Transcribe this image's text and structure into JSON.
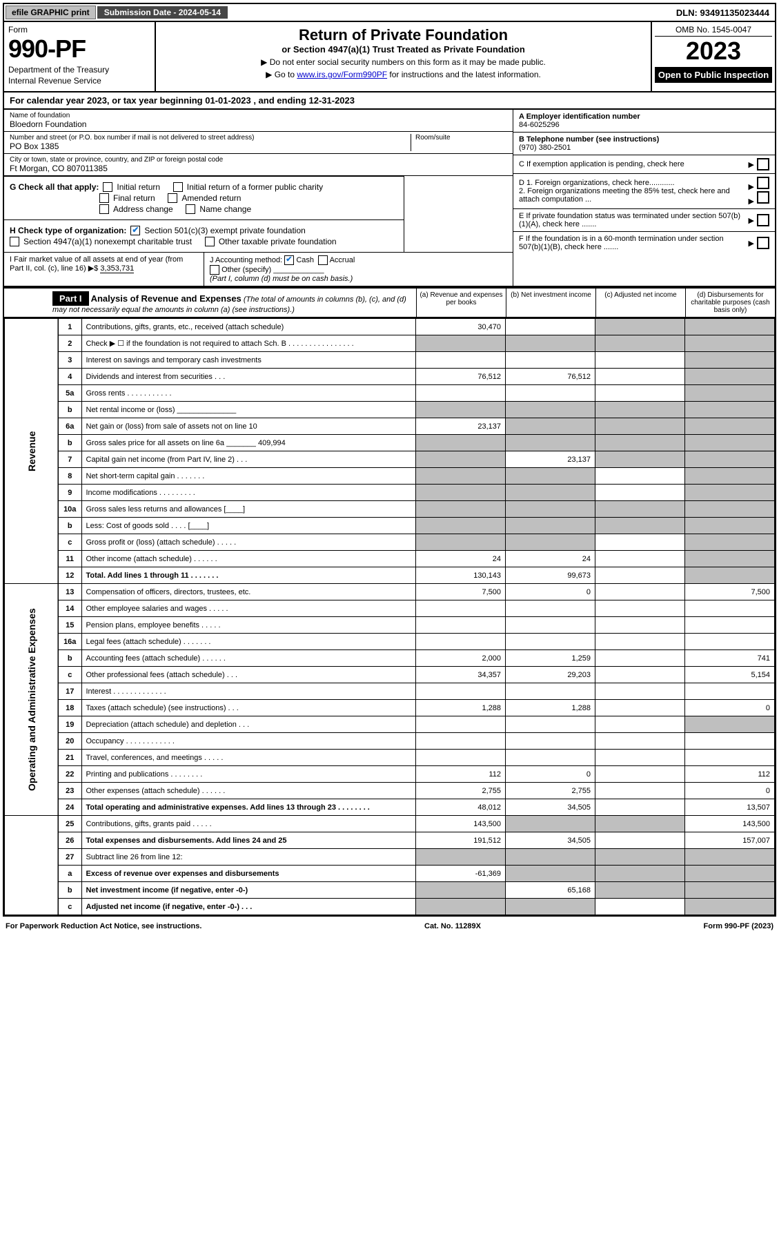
{
  "topbar": {
    "efile": "efile GRAPHIC print",
    "submission": "Submission Date - 2024-05-14",
    "dln": "DLN: 93491135023444"
  },
  "header": {
    "form_label": "Form",
    "form_no": "990-PF",
    "dept": "Department of the Treasury",
    "irs": "Internal Revenue Service",
    "title": "Return of Private Foundation",
    "subtitle": "or Section 4947(a)(1) Trust Treated as Private Foundation",
    "note1": "▶ Do not enter social security numbers on this form as it may be made public.",
    "note2_pre": "▶ Go to ",
    "note2_link": "www.irs.gov/Form990PF",
    "note2_post": " for instructions and the latest information.",
    "omb": "OMB No. 1545-0047",
    "year": "2023",
    "open": "Open to Public Inspection"
  },
  "cal": "For calendar year 2023, or tax year beginning 01-01-2023            , and ending 12-31-2023",
  "entity": {
    "name_lbl": "Name of foundation",
    "name": "Bloedorn Foundation",
    "addr_lbl": "Number and street (or P.O. box number if mail is not delivered to street address)",
    "addr": "PO Box 1385",
    "room_lbl": "Room/suite",
    "city_lbl": "City or town, state or province, country, and ZIP or foreign postal code",
    "city": "Ft Morgan, CO  807011385"
  },
  "right_info": {
    "a_lbl": "A Employer identification number",
    "a_val": "84-6025296",
    "b_lbl": "B Telephone number (see instructions)",
    "b_val": "(970) 380-2501",
    "c_lbl": "C If exemption application is pending, check here",
    "d1": "D 1. Foreign organizations, check here............",
    "d2": "2. Foreign organizations meeting the 85% test, check here and attach computation ...",
    "e": "E  If private foundation status was terminated under section 507(b)(1)(A), check here .......",
    "f": "F  If the foundation is in a 60-month termination under section 507(b)(1)(B), check here .......",
    "g_lbl": "G Check all that apply:",
    "g_opts": [
      "Initial return",
      "Initial return of a former public charity",
      "Final return",
      "Amended return",
      "Address change",
      "Name change"
    ],
    "h_lbl": "H Check type of organization:",
    "h_opts": [
      "Section 501(c)(3) exempt private foundation",
      "Section 4947(a)(1) nonexempt charitable trust",
      "Other taxable private foundation"
    ],
    "i_lbl": "I Fair market value of all assets at end of year (from Part II, col. (c), line 16) ▶$",
    "i_val": "3,353,731",
    "j_lbl": "J Accounting method:",
    "j_cash": "Cash",
    "j_accrual": "Accrual",
    "j_other": "Other (specify)",
    "j_note": "(Part I, column (d) must be on cash basis.)"
  },
  "part1": {
    "label": "Part I",
    "title": "Analysis of Revenue and Expenses",
    "title_note": "(The total of amounts in columns (b), (c), and (d) may not necessarily equal the amounts in column (a) (see instructions).)",
    "cols": [
      "(a) Revenue and expenses per books",
      "(b) Net investment income",
      "(c) Adjusted net income",
      "(d) Disbursements for charitable purposes (cash basis only)"
    ]
  },
  "sides": {
    "rev": "Revenue",
    "exp": "Operating and Administrative Expenses"
  },
  "lines": [
    {
      "n": "1",
      "d": "Contributions, gifts, grants, etc., received (attach schedule)",
      "a": "30,470",
      "b": "",
      "c": "g",
      "dd": "g"
    },
    {
      "n": "2",
      "d": "Check ▶ ☐ if the foundation is not required to attach Sch. B   . . . . . . . . . . . . . . . .",
      "a": "g",
      "b": "g",
      "c": "g",
      "dd": "g"
    },
    {
      "n": "3",
      "d": "Interest on savings and temporary cash investments",
      "a": "",
      "b": "",
      "c": "",
      "dd": "g"
    },
    {
      "n": "4",
      "d": "Dividends and interest from securities   .  .  .",
      "a": "76,512",
      "b": "76,512",
      "c": "",
      "dd": "g"
    },
    {
      "n": "5a",
      "d": "Gross rents   .  .  .  .  .  .  .  .  .  .  .",
      "a": "",
      "b": "",
      "c": "",
      "dd": "g"
    },
    {
      "n": "b",
      "d": "Net rental income or (loss)  ______________",
      "a": "g",
      "b": "g",
      "c": "g",
      "dd": "g"
    },
    {
      "n": "6a",
      "d": "Net gain or (loss) from sale of assets not on line 10",
      "a": "23,137",
      "b": "g",
      "c": "g",
      "dd": "g"
    },
    {
      "n": "b",
      "d": "Gross sales price for all assets on line 6a _______ 409,994",
      "a": "g",
      "b": "g",
      "c": "g",
      "dd": "g"
    },
    {
      "n": "7",
      "d": "Capital gain net income (from Part IV, line 2)  .  .  .",
      "a": "g",
      "b": "23,137",
      "c": "g",
      "dd": "g"
    },
    {
      "n": "8",
      "d": "Net short-term capital gain  .  .  .  .  .  .  .",
      "a": "g",
      "b": "g",
      "c": "",
      "dd": "g"
    },
    {
      "n": "9",
      "d": "Income modifications  .  .  .  .  .  .  .  .  .",
      "a": "g",
      "b": "g",
      "c": "",
      "dd": "g"
    },
    {
      "n": "10a",
      "d": "Gross sales less returns and allowances  [____]",
      "a": "g",
      "b": "g",
      "c": "g",
      "dd": "g"
    },
    {
      "n": "b",
      "d": "Less: Cost of goods sold   .  .  .  .  [____]",
      "a": "g",
      "b": "g",
      "c": "g",
      "dd": "g"
    },
    {
      "n": "c",
      "d": "Gross profit or (loss) (attach schedule)   .  .  .  .  .",
      "a": "g",
      "b": "g",
      "c": "",
      "dd": "g"
    },
    {
      "n": "11",
      "d": "Other income (attach schedule)   .  .  .  .  .  .",
      "a": "24",
      "b": "24",
      "c": "",
      "dd": "g"
    },
    {
      "n": "12",
      "d": "Total. Add lines 1 through 11   .  .  .  .  .  .  .",
      "a": "130,143",
      "b": "99,673",
      "c": "",
      "dd": "g",
      "bold": true
    },
    {
      "n": "13",
      "d": "Compensation of officers, directors, trustees, etc.",
      "a": "7,500",
      "b": "0",
      "c": "",
      "dd": "7,500"
    },
    {
      "n": "14",
      "d": "Other employee salaries and wages   .  .  .  .  .",
      "a": "",
      "b": "",
      "c": "",
      "dd": ""
    },
    {
      "n": "15",
      "d": "Pension plans, employee benefits   .  .  .  .  .",
      "a": "",
      "b": "",
      "c": "",
      "dd": ""
    },
    {
      "n": "16a",
      "d": "Legal fees (attach schedule)  .  .  .  .  .  .  .",
      "a": "",
      "b": "",
      "c": "",
      "dd": ""
    },
    {
      "n": "b",
      "d": "Accounting fees (attach schedule)  .  .  .  .  .  .",
      "a": "2,000",
      "b": "1,259",
      "c": "",
      "dd": "741"
    },
    {
      "n": "c",
      "d": "Other professional fees (attach schedule)   .  .  .",
      "a": "34,357",
      "b": "29,203",
      "c": "",
      "dd": "5,154"
    },
    {
      "n": "17",
      "d": "Interest  .  .  .  .  .  .  .  .  .  .  .  .  .",
      "a": "",
      "b": "",
      "c": "",
      "dd": ""
    },
    {
      "n": "18",
      "d": "Taxes (attach schedule) (see instructions)   .  .  .",
      "a": "1,288",
      "b": "1,288",
      "c": "",
      "dd": "0"
    },
    {
      "n": "19",
      "d": "Depreciation (attach schedule) and depletion   .  .  .",
      "a": "",
      "b": "",
      "c": "",
      "dd": "g"
    },
    {
      "n": "20",
      "d": "Occupancy  .  .  .  .  .  .  .  .  .  .  .  .",
      "a": "",
      "b": "",
      "c": "",
      "dd": ""
    },
    {
      "n": "21",
      "d": "Travel, conferences, and meetings  .  .  .  .  .",
      "a": "",
      "b": "",
      "c": "",
      "dd": ""
    },
    {
      "n": "22",
      "d": "Printing and publications  .  .  .  .  .  .  .  .",
      "a": "112",
      "b": "0",
      "c": "",
      "dd": "112"
    },
    {
      "n": "23",
      "d": "Other expenses (attach schedule)  .  .  .  .  .  .",
      "a": "2,755",
      "b": "2,755",
      "c": "",
      "dd": "0"
    },
    {
      "n": "24",
      "d": "Total operating and administrative expenses. Add lines 13 through 23   .  .  .  .  .  .  .  .",
      "a": "48,012",
      "b": "34,505",
      "c": "",
      "dd": "13,507",
      "bold": true
    },
    {
      "n": "25",
      "d": "Contributions, gifts, grants paid   .  .  .  .  .",
      "a": "143,500",
      "b": "g",
      "c": "g",
      "dd": "143,500"
    },
    {
      "n": "26",
      "d": "Total expenses and disbursements. Add lines 24 and 25",
      "a": "191,512",
      "b": "34,505",
      "c": "",
      "dd": "157,007",
      "bold": true
    },
    {
      "n": "27",
      "d": "Subtract line 26 from line 12:",
      "a": "g",
      "b": "g",
      "c": "g",
      "dd": "g"
    },
    {
      "n": "a",
      "d": "Excess of revenue over expenses and disbursements",
      "a": "-61,369",
      "b": "g",
      "c": "g",
      "dd": "g",
      "bold": true
    },
    {
      "n": "b",
      "d": "Net investment income (if negative, enter -0-)",
      "a": "g",
      "b": "65,168",
      "c": "g",
      "dd": "g",
      "bold": true
    },
    {
      "n": "c",
      "d": "Adjusted net income (if negative, enter -0-)   .  .  .",
      "a": "g",
      "b": "g",
      "c": "",
      "dd": "g",
      "bold": true
    }
  ],
  "footer": {
    "left": "For Paperwork Reduction Act Notice, see instructions.",
    "mid": "Cat. No. 11289X",
    "right": "Form 990-PF (2023)"
  },
  "colors": {
    "grey": "#bfbfbf",
    "darkbar": "#464646",
    "link": "#0000cc",
    "check": "#1976d2"
  }
}
